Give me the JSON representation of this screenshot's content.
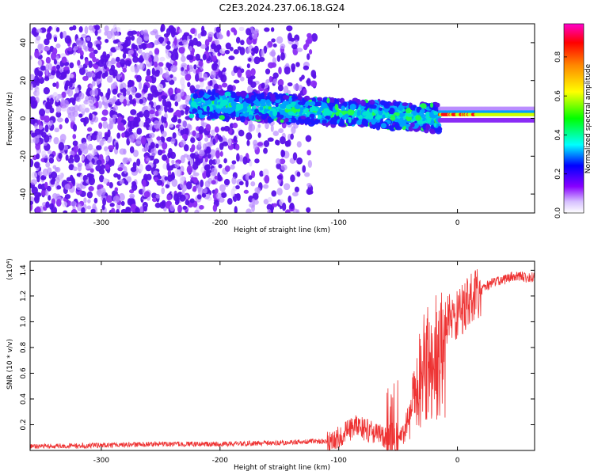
{
  "title": "C2E3.2024.237.06.18.G24",
  "chart_data": [
    {
      "type": "heatmap",
      "xlabel": "Height of straight line (km)",
      "ylabel": "Frequency (Hz)",
      "xlim": [
        -360,
        65
      ],
      "ylim": [
        -50,
        50
      ],
      "xticks": [
        -300,
        -200,
        -100,
        0
      ],
      "yticks": [
        -40,
        -20,
        0,
        20,
        40
      ],
      "colorbar": {
        "label": "Normalized spectral amplitude",
        "range": [
          0,
          0.97
        ],
        "ticks": [
          0.0,
          0.2,
          0.4,
          0.6,
          0.8
        ],
        "colormap": [
          "#ff00cc",
          "#ff0000",
          "#ff8800",
          "#ffff00",
          "#00ff00",
          "#00ffff",
          "#0000ff",
          "#8800ff",
          "#e8d8ff"
        ]
      },
      "features": [
        {
          "x_range": [
            -360,
            -120
          ],
          "freq_range": [
            -50,
            48
          ],
          "amplitude": 0.05,
          "note": "diffuse noise"
        },
        {
          "x_range": [
            -225,
            -15
          ],
          "freq_center_start": 8,
          "freq_center_end": 0,
          "freq_halfwidth": 7,
          "amplitude": 0.3
        },
        {
          "x_range": [
            -15,
            65
          ],
          "freq_center": 2,
          "freq_halfwidth": 2,
          "amplitude": 0.9
        }
      ]
    },
    {
      "type": "line",
      "xlabel": "Height of straight line (km)",
      "ylabel": "SNR (10 * v/v)",
      "yscale_label": "(x10⁴)",
      "xlim": [
        -360,
        65
      ],
      "ylim": [
        0,
        1.47
      ],
      "xticks": [
        -300,
        -200,
        -100,
        0
      ],
      "yticks": [
        0.2,
        0.4,
        0.6,
        0.8,
        1.0,
        1.2,
        1.4
      ],
      "color": "#ee3333",
      "series": [
        {
          "x": [
            -360,
            -300,
            -250,
            -200,
            -150,
            -120,
            -105,
            -95,
            -85,
            -75,
            -65,
            -60,
            -55,
            -50,
            -45,
            -40,
            -35,
            -30,
            -25,
            -20,
            -15,
            -10,
            -5,
            0,
            5,
            10,
            15,
            20,
            25,
            30,
            35,
            40,
            45,
            50,
            55,
            60,
            65
          ],
          "y": [
            0.03,
            0.04,
            0.05,
            0.05,
            0.06,
            0.07,
            0.07,
            0.14,
            0.19,
            0.15,
            0.12,
            0.09,
            0.07,
            0.1,
            0.18,
            0.32,
            0.55,
            0.75,
            0.85,
            0.9,
            0.95,
            1.0,
            1.05,
            1.05,
            1.1,
            1.16,
            1.21,
            1.24,
            1.28,
            1.31,
            1.32,
            1.33,
            1.35,
            1.36,
            1.35,
            1.34,
            1.35
          ]
        }
      ]
    }
  ]
}
